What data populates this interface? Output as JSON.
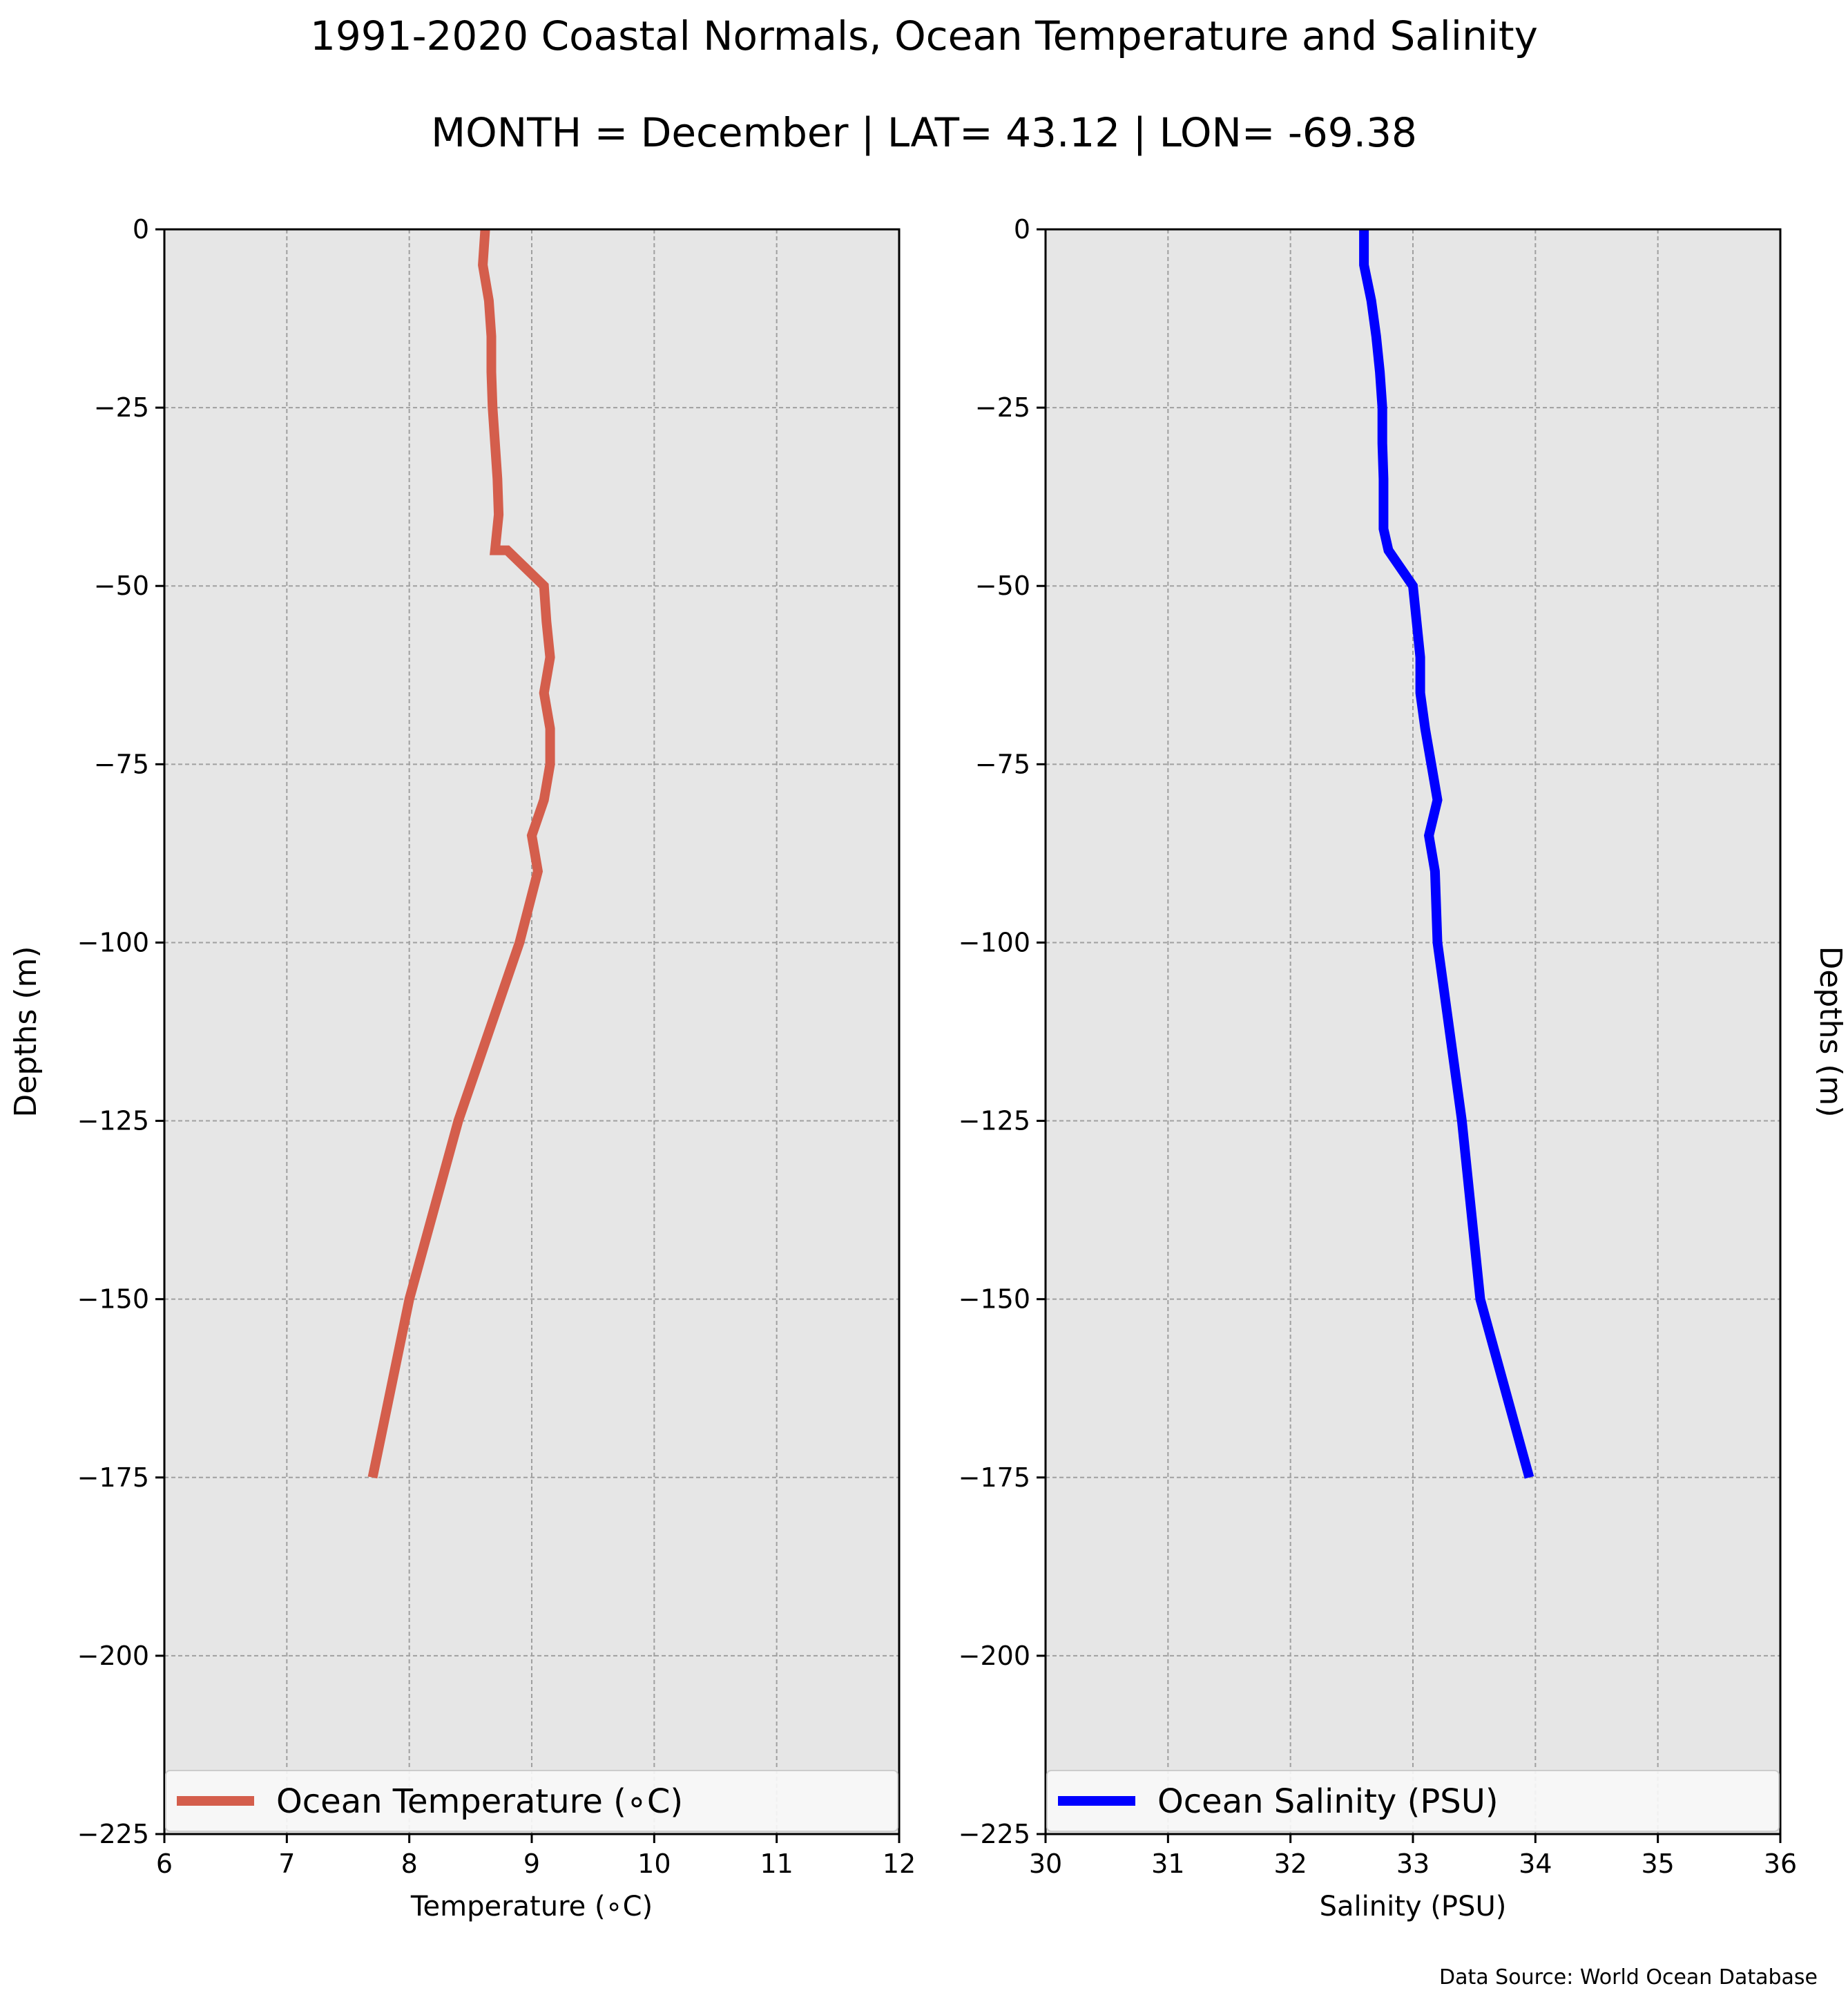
{
  "title": "1991-2020 Coastal Normals, Ocean Temperature and Salinity",
  "subtitle": "MONTH = December | LAT= 43.12 | LON= -69.38",
  "source": "Data Source: World Ocean Database",
  "chart_data": [
    {
      "type": "line",
      "xlabel": "Temperature (∘C)",
      "ylabel": "Depths (m)",
      "xlim": [
        6,
        12
      ],
      "ylim": [
        -225,
        0
      ],
      "xticks": [
        "6",
        "7",
        "8",
        "9",
        "10",
        "11",
        "12"
      ],
      "yticks": [
        "0",
        "−25",
        "−50",
        "−75",
        "−100",
        "−125",
        "−150",
        "−175",
        "−200",
        "−225"
      ],
      "grid": true,
      "legend_position": "lower center",
      "series": [
        {
          "name": "Ocean Temperature (∘C)",
          "color": "#d45e4c",
          "x": [
            8.62,
            8.6,
            8.65,
            8.67,
            8.67,
            8.68,
            8.7,
            8.72,
            8.73,
            8.7,
            8.8,
            9.1,
            9.12,
            9.15,
            9.1,
            9.15,
            9.15,
            9.1,
            9.0,
            9.05,
            8.9,
            8.4,
            8.0,
            7.7
          ],
          "y": [
            0,
            -5,
            -10,
            -15,
            -20,
            -25,
            -30,
            -35,
            -40,
            -45,
            -45,
            -50,
            -55,
            -60,
            -65,
            -70,
            -75,
            -80,
            -85,
            -90,
            -100,
            -125,
            -150,
            -175
          ]
        }
      ]
    },
    {
      "type": "line",
      "xlabel": "Salinity (PSU)",
      "ylabel": "Depths (m)",
      "xlim": [
        30,
        36
      ],
      "ylim": [
        -225,
        0
      ],
      "xticks": [
        "30",
        "31",
        "32",
        "33",
        "34",
        "35",
        "36"
      ],
      "yticks": [
        "0",
        "−25",
        "−50",
        "−75",
        "−100",
        "−125",
        "−150",
        "−175",
        "−200",
        "−225"
      ],
      "grid": true,
      "legend_position": "lower center",
      "series": [
        {
          "name": "Ocean Salinity (PSU)",
          "color": "#0000ff",
          "x": [
            32.6,
            32.6,
            32.66,
            32.7,
            32.73,
            32.75,
            32.75,
            32.76,
            32.76,
            32.76,
            32.8,
            33.0,
            33.03,
            33.06,
            33.06,
            33.1,
            33.15,
            33.2,
            33.13,
            33.18,
            33.2,
            33.4,
            33.55,
            33.95
          ],
          "y": [
            0,
            -5,
            -10,
            -15,
            -20,
            -25,
            -30,
            -35,
            -40,
            -42,
            -45,
            -50,
            -55,
            -60,
            -65,
            -70,
            -75,
            -80,
            -85,
            -90,
            -100,
            -125,
            -150,
            -175
          ]
        }
      ]
    }
  ]
}
